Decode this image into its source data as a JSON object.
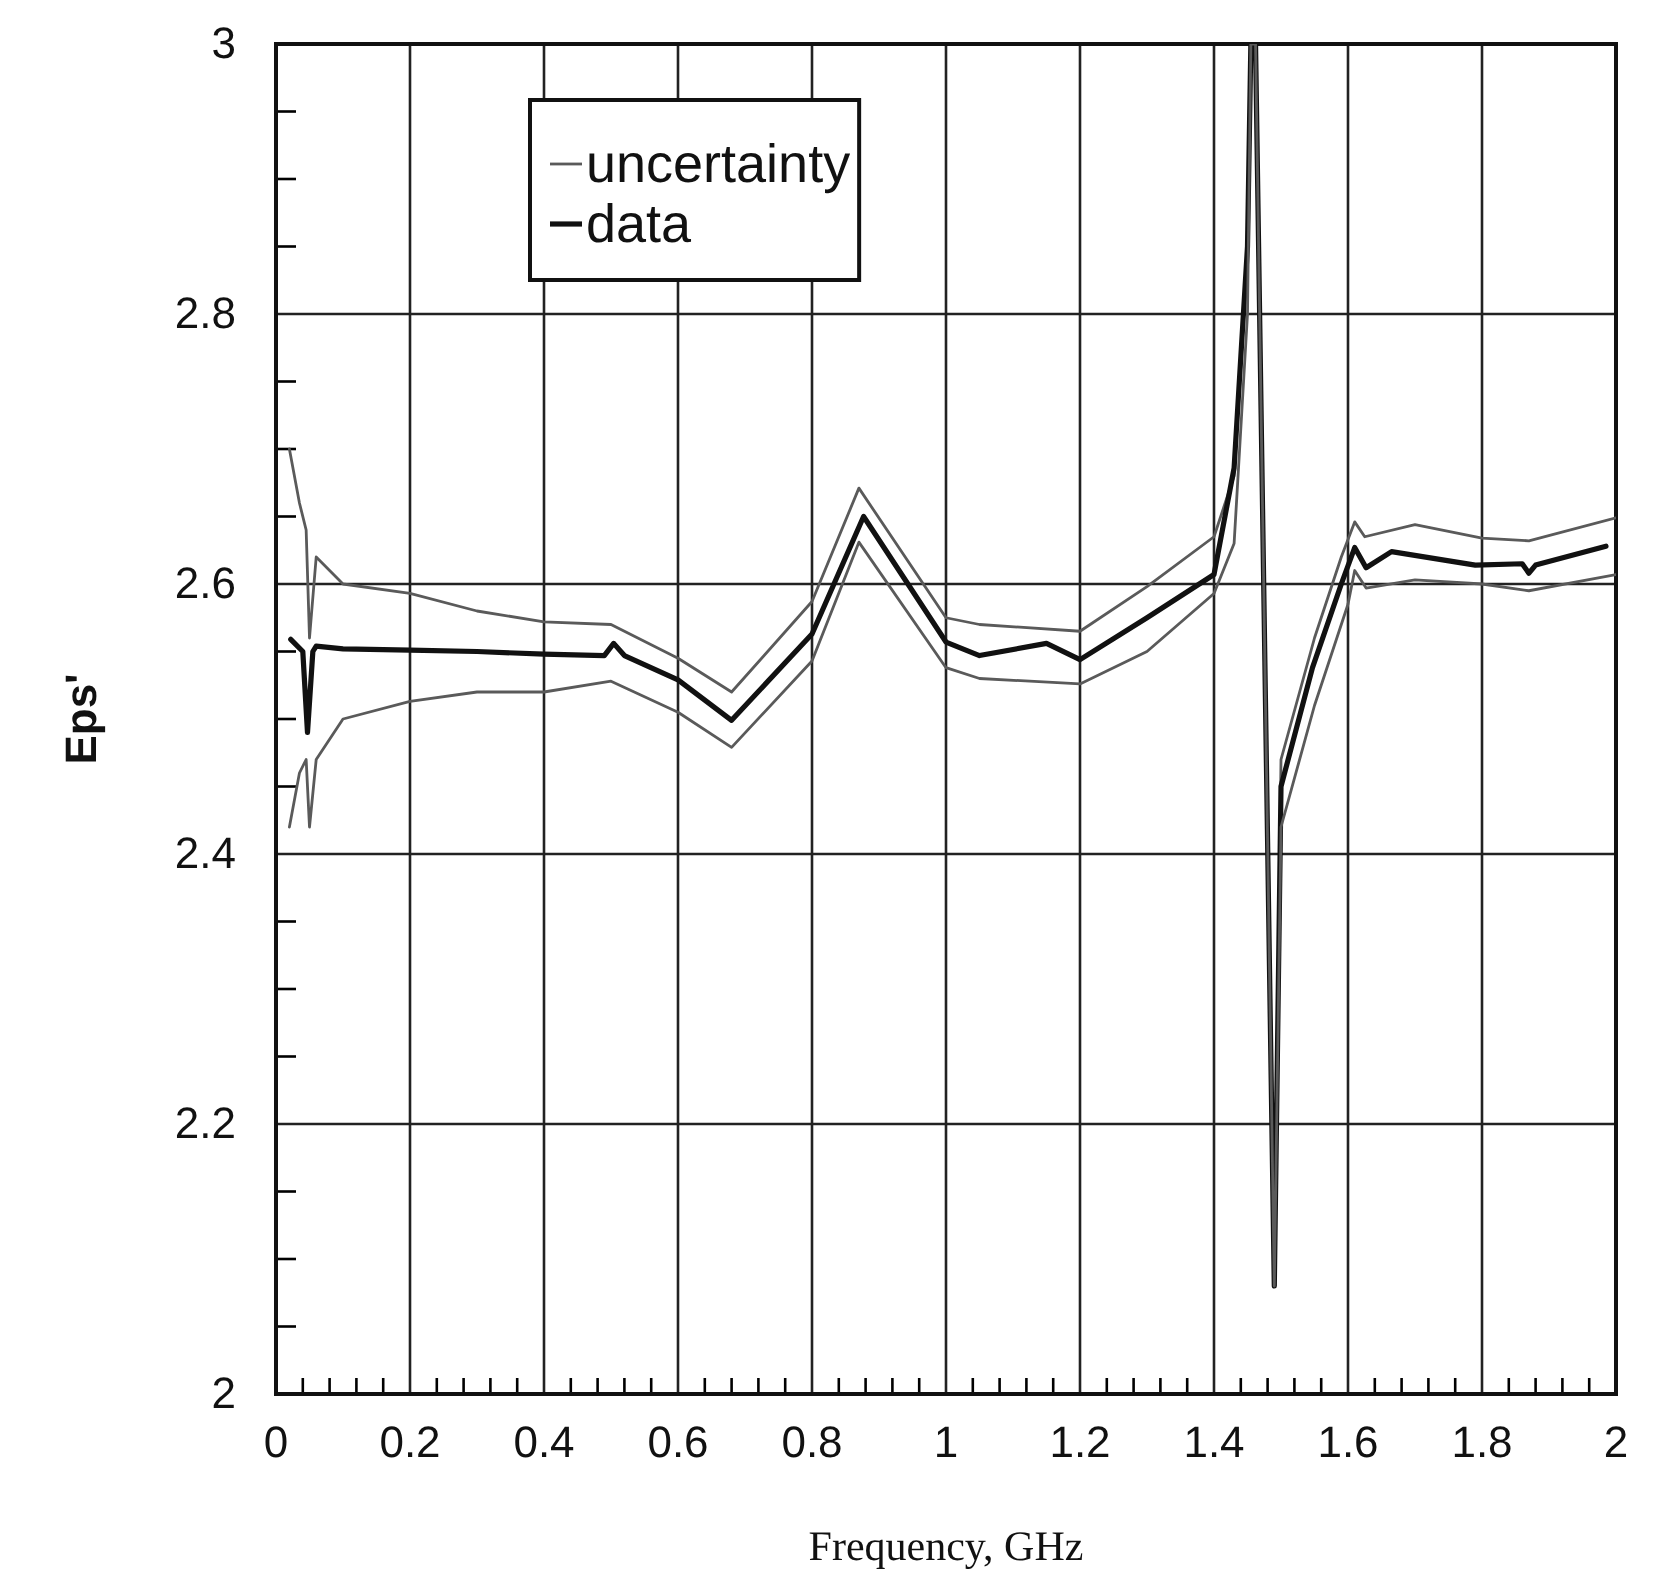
{
  "chart_data": {
    "type": "line",
    "xlabel": "Frequency, GHz",
    "ylabel": "Eps'",
    "xlim": [
      0,
      2
    ],
    "ylim": [
      2,
      3
    ],
    "xticks": [
      0,
      {
        "value": 0.04,
        "label": null
      },
      {
        "value": 0.08,
        "label": null
      },
      {
        "value": 0.12,
        "label": null
      },
      {
        "value": 0.16,
        "label": null
      },
      0.2,
      {
        "value": 0.24,
        "label": null
      },
      {
        "value": 0.28,
        "label": null
      },
      {
        "value": 0.32,
        "label": null
      },
      {
        "value": 0.36,
        "label": null
      },
      0.4,
      {
        "value": 0.44,
        "label": null
      },
      {
        "value": 0.48,
        "label": null
      },
      {
        "value": 0.52,
        "label": null
      },
      {
        "value": 0.56,
        "label": null
      },
      0.6,
      {
        "value": 0.64,
        "label": null
      },
      {
        "value": 0.68,
        "label": null
      },
      {
        "value": 0.72,
        "label": null
      },
      {
        "value": 0.76,
        "label": null
      },
      0.8,
      {
        "value": 0.84,
        "label": null
      },
      {
        "value": 0.88,
        "label": null
      },
      {
        "value": 0.92,
        "label": null
      },
      {
        "value": 0.96,
        "label": null
      },
      1,
      {
        "value": 1.04,
        "label": null
      },
      {
        "value": 1.08,
        "label": null
      },
      {
        "value": 1.12,
        "label": null
      },
      {
        "value": 1.16,
        "label": null
      },
      1.2,
      {
        "value": 1.24,
        "label": null
      },
      {
        "value": 1.28,
        "label": null
      },
      {
        "value": 1.32,
        "label": null
      },
      {
        "value": 1.36,
        "label": null
      },
      1.4,
      {
        "value": 1.44,
        "label": null
      },
      {
        "value": 1.48,
        "label": null
      },
      {
        "value": 1.52,
        "label": null
      },
      {
        "value": 1.56,
        "label": null
      },
      1.6,
      {
        "value": 1.64,
        "label": null
      },
      {
        "value": 1.68,
        "label": null
      },
      {
        "value": 1.72,
        "label": null
      },
      {
        "value": 1.76,
        "label": null
      },
      1.8,
      {
        "value": 1.84,
        "label": null
      },
      {
        "value": 1.88,
        "label": null
      },
      {
        "value": 1.92,
        "label": null
      },
      {
        "value": 1.96,
        "label": null
      },
      2
    ],
    "yticks": [
      2,
      {
        "value": 2.05,
        "label": null
      },
      {
        "value": 2.1,
        "label": null
      },
      {
        "value": 2.15,
        "label": null
      },
      2.2,
      {
        "value": 2.25,
        "label": null
      },
      {
        "value": 2.3,
        "label": null
      },
      {
        "value": 2.35,
        "label": null
      },
      2.4,
      {
        "value": 2.45,
        "label": null
      },
      {
        "value": 2.5,
        "label": null
      },
      {
        "value": 2.55,
        "label": null
      },
      2.6,
      {
        "value": 2.65,
        "label": null
      },
      {
        "value": 2.7,
        "label": null
      },
      {
        "value": 2.75,
        "label": null
      },
      2.8,
      {
        "value": 2.85,
        "label": null
      },
      {
        "value": 2.9,
        "label": null
      },
      {
        "value": 2.95,
        "label": null
      },
      3
    ],
    "grid": true,
    "legend": "top left",
    "marker": "none",
    "line_style": "solid",
    "series": [
      {
        "name": "uncertainty",
        "color": "#5a5a5a",
        "x": [
          0.02,
          0.035,
          0.045,
          0.05,
          0.06,
          0.08,
          0.1,
          0.2,
          0.3,
          0.4,
          0.5,
          0.6,
          0.68,
          0.8,
          0.87,
          1,
          1.05,
          1.2,
          1.3,
          1.4,
          1.43,
          1.45,
          1.455,
          1.462,
          1.49,
          1.5,
          1.55,
          1.59,
          1.61,
          1.625,
          1.7,
          1.8,
          1.87,
          2
        ],
        "values": [
          2.7,
          2.66,
          2.64,
          2.56,
          2.62,
          2.61,
          2.6,
          2.593,
          2.58,
          2.572,
          2.57,
          2.545,
          2.52,
          2.587,
          2.671,
          2.575,
          2.57,
          2.565,
          2.598,
          2.635,
          2.68,
          2.85,
          3,
          3,
          2.08,
          2.47,
          2.56,
          2.62,
          2.646,
          2.635,
          2.644,
          2.634,
          2.632,
          2.649
        ]
      },
      {
        "name": "data",
        "color": "#111111",
        "x": [
          0.022,
          0.04,
          0.047,
          0.055,
          0.06,
          0.1,
          0.2,
          0.3,
          0.4,
          0.49,
          0.504,
          0.52,
          0.6,
          0.68,
          0.8,
          0.877,
          1,
          1.05,
          1.15,
          1.2,
          1.3,
          1.4,
          1.43,
          1.45,
          1.455,
          1.462,
          1.49,
          1.5,
          1.547,
          1.59,
          1.61,
          1.627,
          1.665,
          1.79,
          1.86,
          1.87,
          1.88,
          1.985
        ],
        "values": [
          2.559,
          2.55,
          2.49,
          2.55,
          2.554,
          2.552,
          2.551,
          2.55,
          2.548,
          2.547,
          2.556,
          2.547,
          2.529,
          2.499,
          2.563,
          2.65,
          2.557,
          2.547,
          2.556,
          2.544,
          2.575,
          2.607,
          2.686,
          2.85,
          3,
          3,
          2.08,
          2.45,
          2.538,
          2.6,
          2.627,
          2.612,
          2.624,
          2.614,
          2.615,
          2.608,
          2.614,
          2.628
        ]
      },
      {
        "color": "#5a5a5a",
        "x": [
          0.02,
          0.035,
          0.045,
          0.05,
          0.06,
          0.1,
          0.2,
          0.3,
          0.4,
          0.5,
          0.6,
          0.68,
          0.8,
          0.87,
          1,
          1.05,
          1.2,
          1.3,
          1.4,
          1.43,
          1.45,
          1.455,
          1.462,
          1.49,
          1.5,
          1.55,
          1.6,
          1.61,
          1.627,
          1.7,
          1.8,
          1.87,
          2
        ],
        "values": [
          2.42,
          2.46,
          2.47,
          2.42,
          2.47,
          2.5,
          2.513,
          2.52,
          2.52,
          2.528,
          2.505,
          2.479,
          2.543,
          2.631,
          2.538,
          2.53,
          2.526,
          2.55,
          2.593,
          2.63,
          2.8,
          3,
          3,
          2.08,
          2.42,
          2.51,
          2.585,
          2.61,
          2.597,
          2.603,
          2.6,
          2.595,
          2.607
        ]
      }
    ]
  }
}
